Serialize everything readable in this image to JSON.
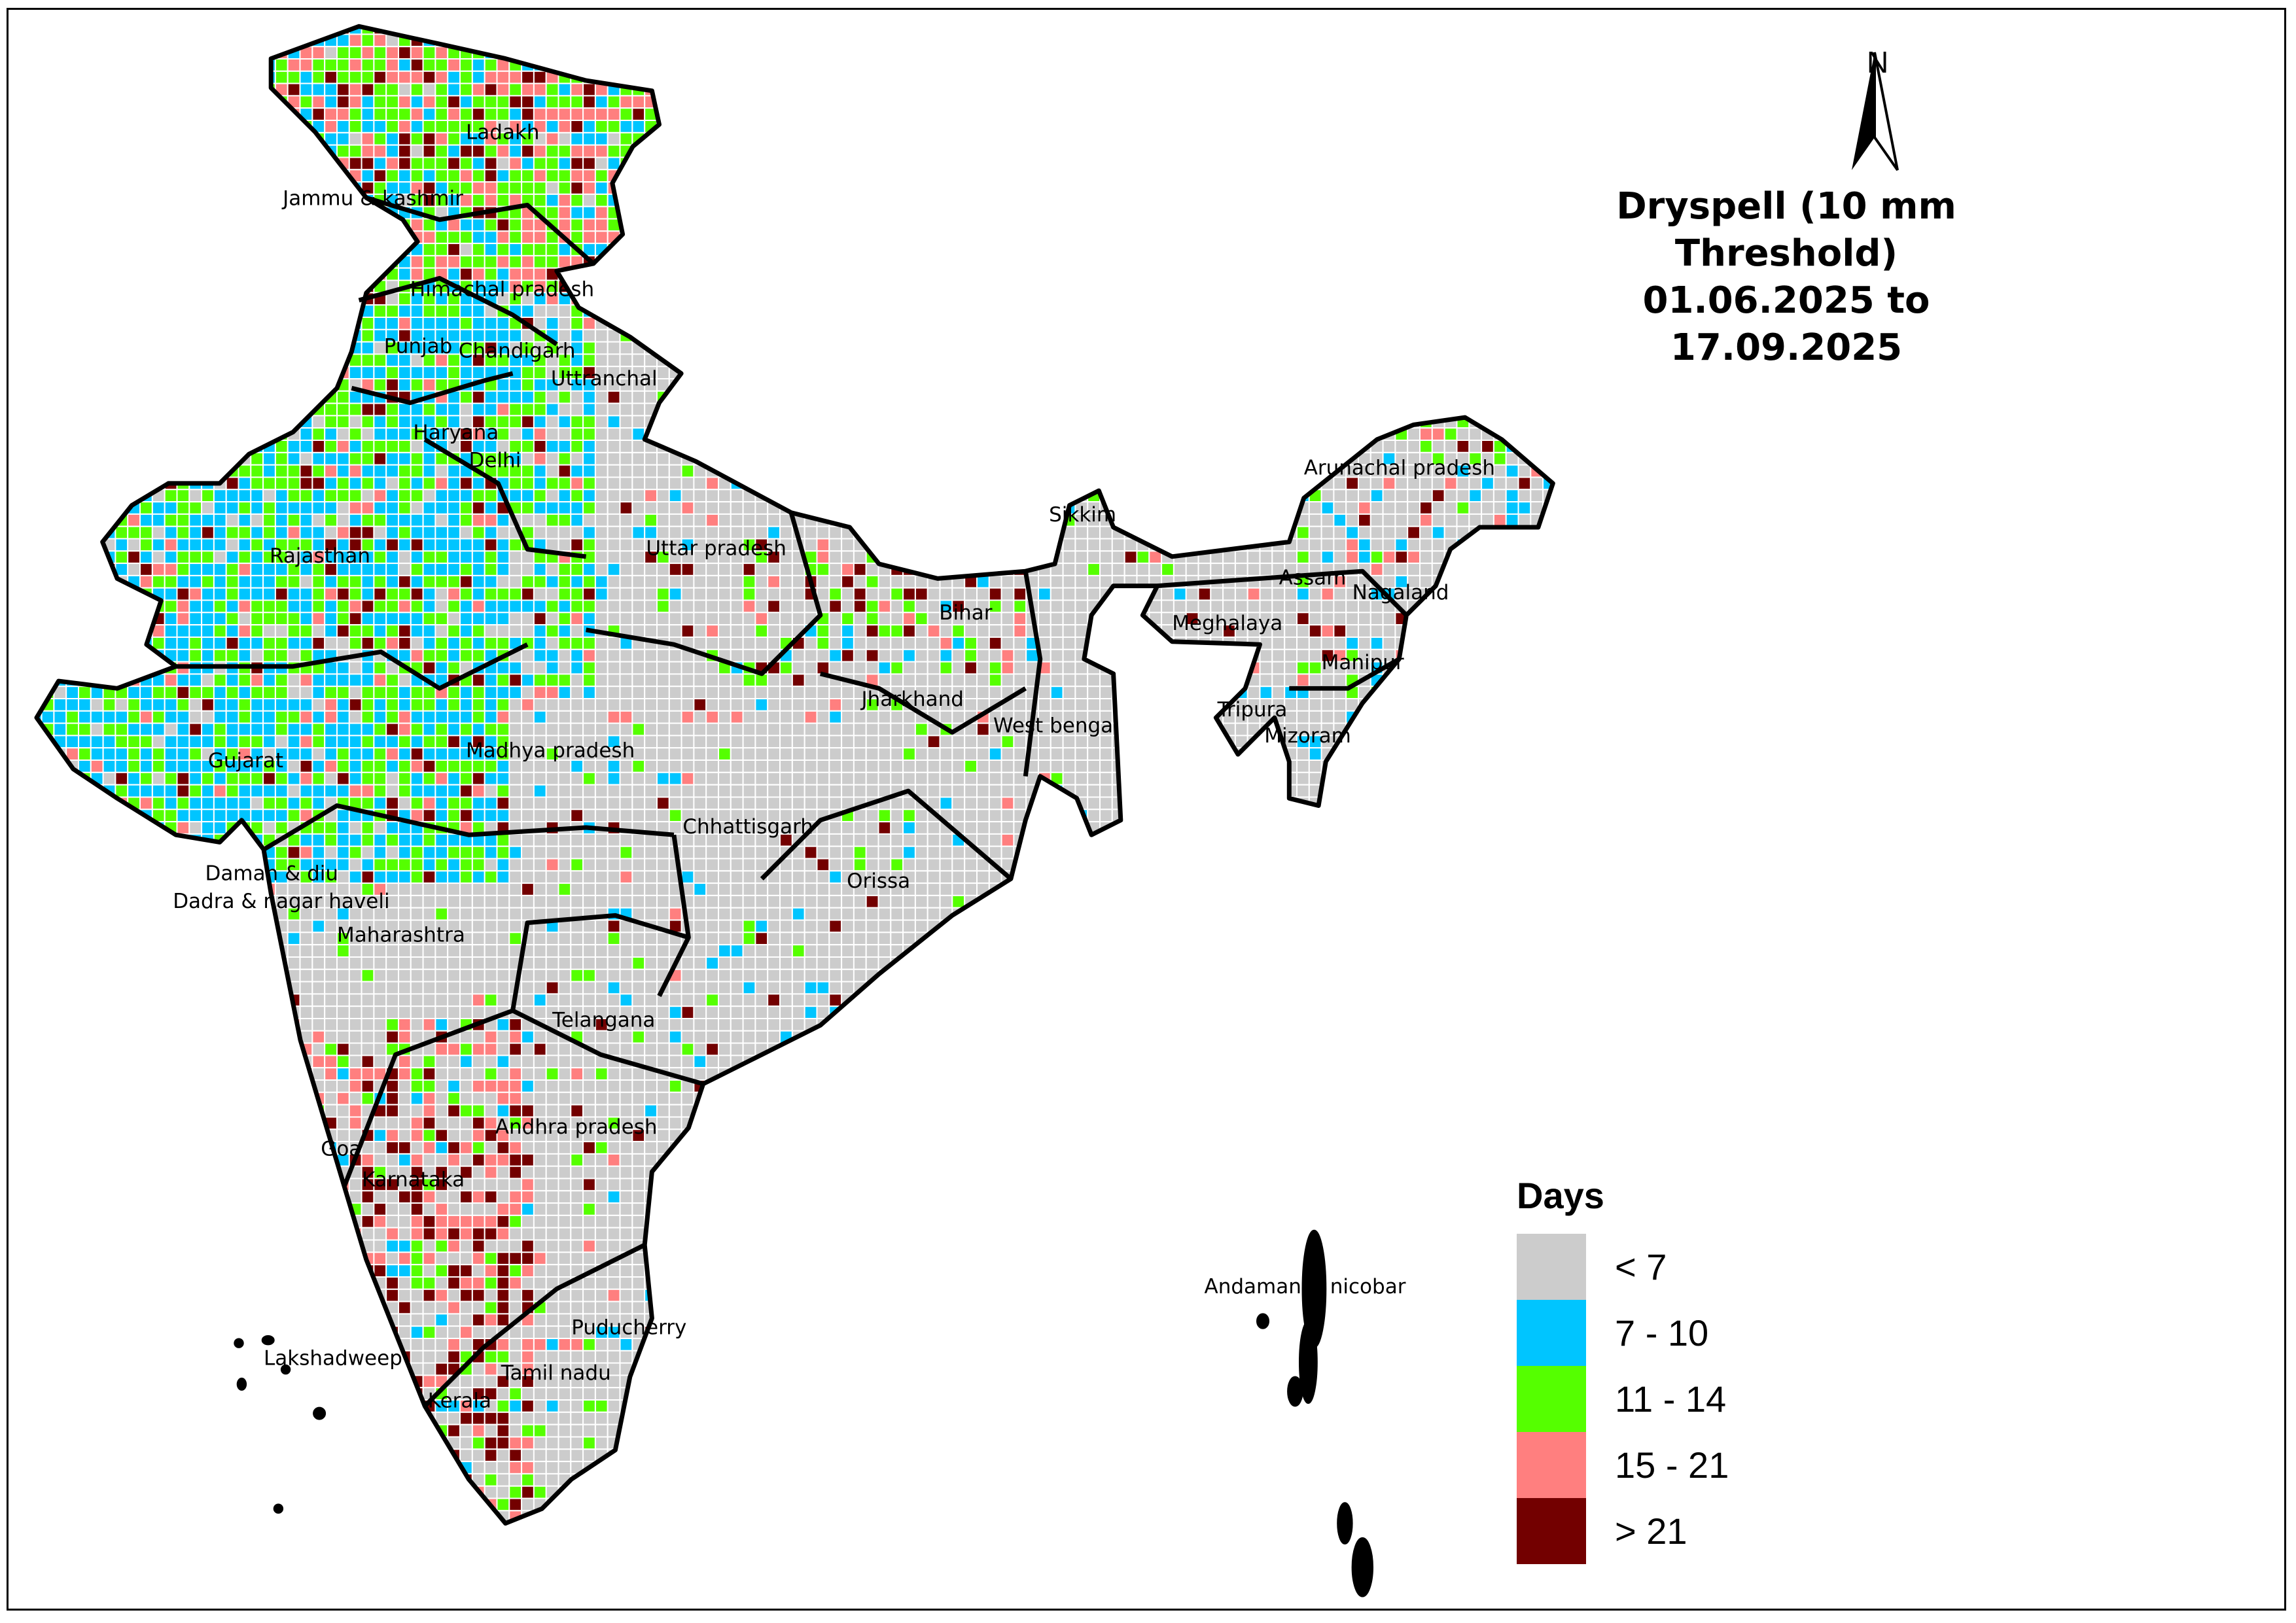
{
  "title": {
    "line1": "Dryspell (10 mm Threshold)",
    "line2": "01.06.2025 to 17.09.2025"
  },
  "north_arrow": {
    "label": "N",
    "icon": "north-arrow-icon"
  },
  "legend": {
    "title": "Days",
    "items": [
      {
        "label": "< 7",
        "color": "#cccccc"
      },
      {
        "label": "7 - 10",
        "color": "#00c5ff"
      },
      {
        "label": "11 - 14",
        "color": "#55ff00"
      },
      {
        "label": "15 - 21",
        "color": "#ff7f7f"
      },
      {
        "label": "> 21",
        "color": "#730000"
      }
    ]
  },
  "regions": [
    "Ladakh",
    "Jammu & kashmir",
    "Himachal pradesh",
    "Punjab",
    "Chandigarh",
    "Uttranchal",
    "Haryana",
    "Delhi",
    "Rajasthan",
    "Uttar pradesh",
    "Sikkim",
    "Arunachal pradesh",
    "Assam",
    "Nagaland",
    "Meghalaya",
    "Bihar",
    "Manipur",
    "Jharkhand",
    "West bengal",
    "Tripura",
    "Mizoram",
    "Gujarat",
    "Madhya pradesh",
    "Chhattisgarh",
    "Orissa",
    "Daman & diu",
    "Dadra & nagar haveli",
    "Maharashtra",
    "Telangana",
    "Andhra pradesh",
    "Goa",
    "Karnataka",
    "Andaman & nicobar",
    "Puducherry",
    "Lakshadweep",
    "Tamil nadu",
    "Kerala"
  ]
}
